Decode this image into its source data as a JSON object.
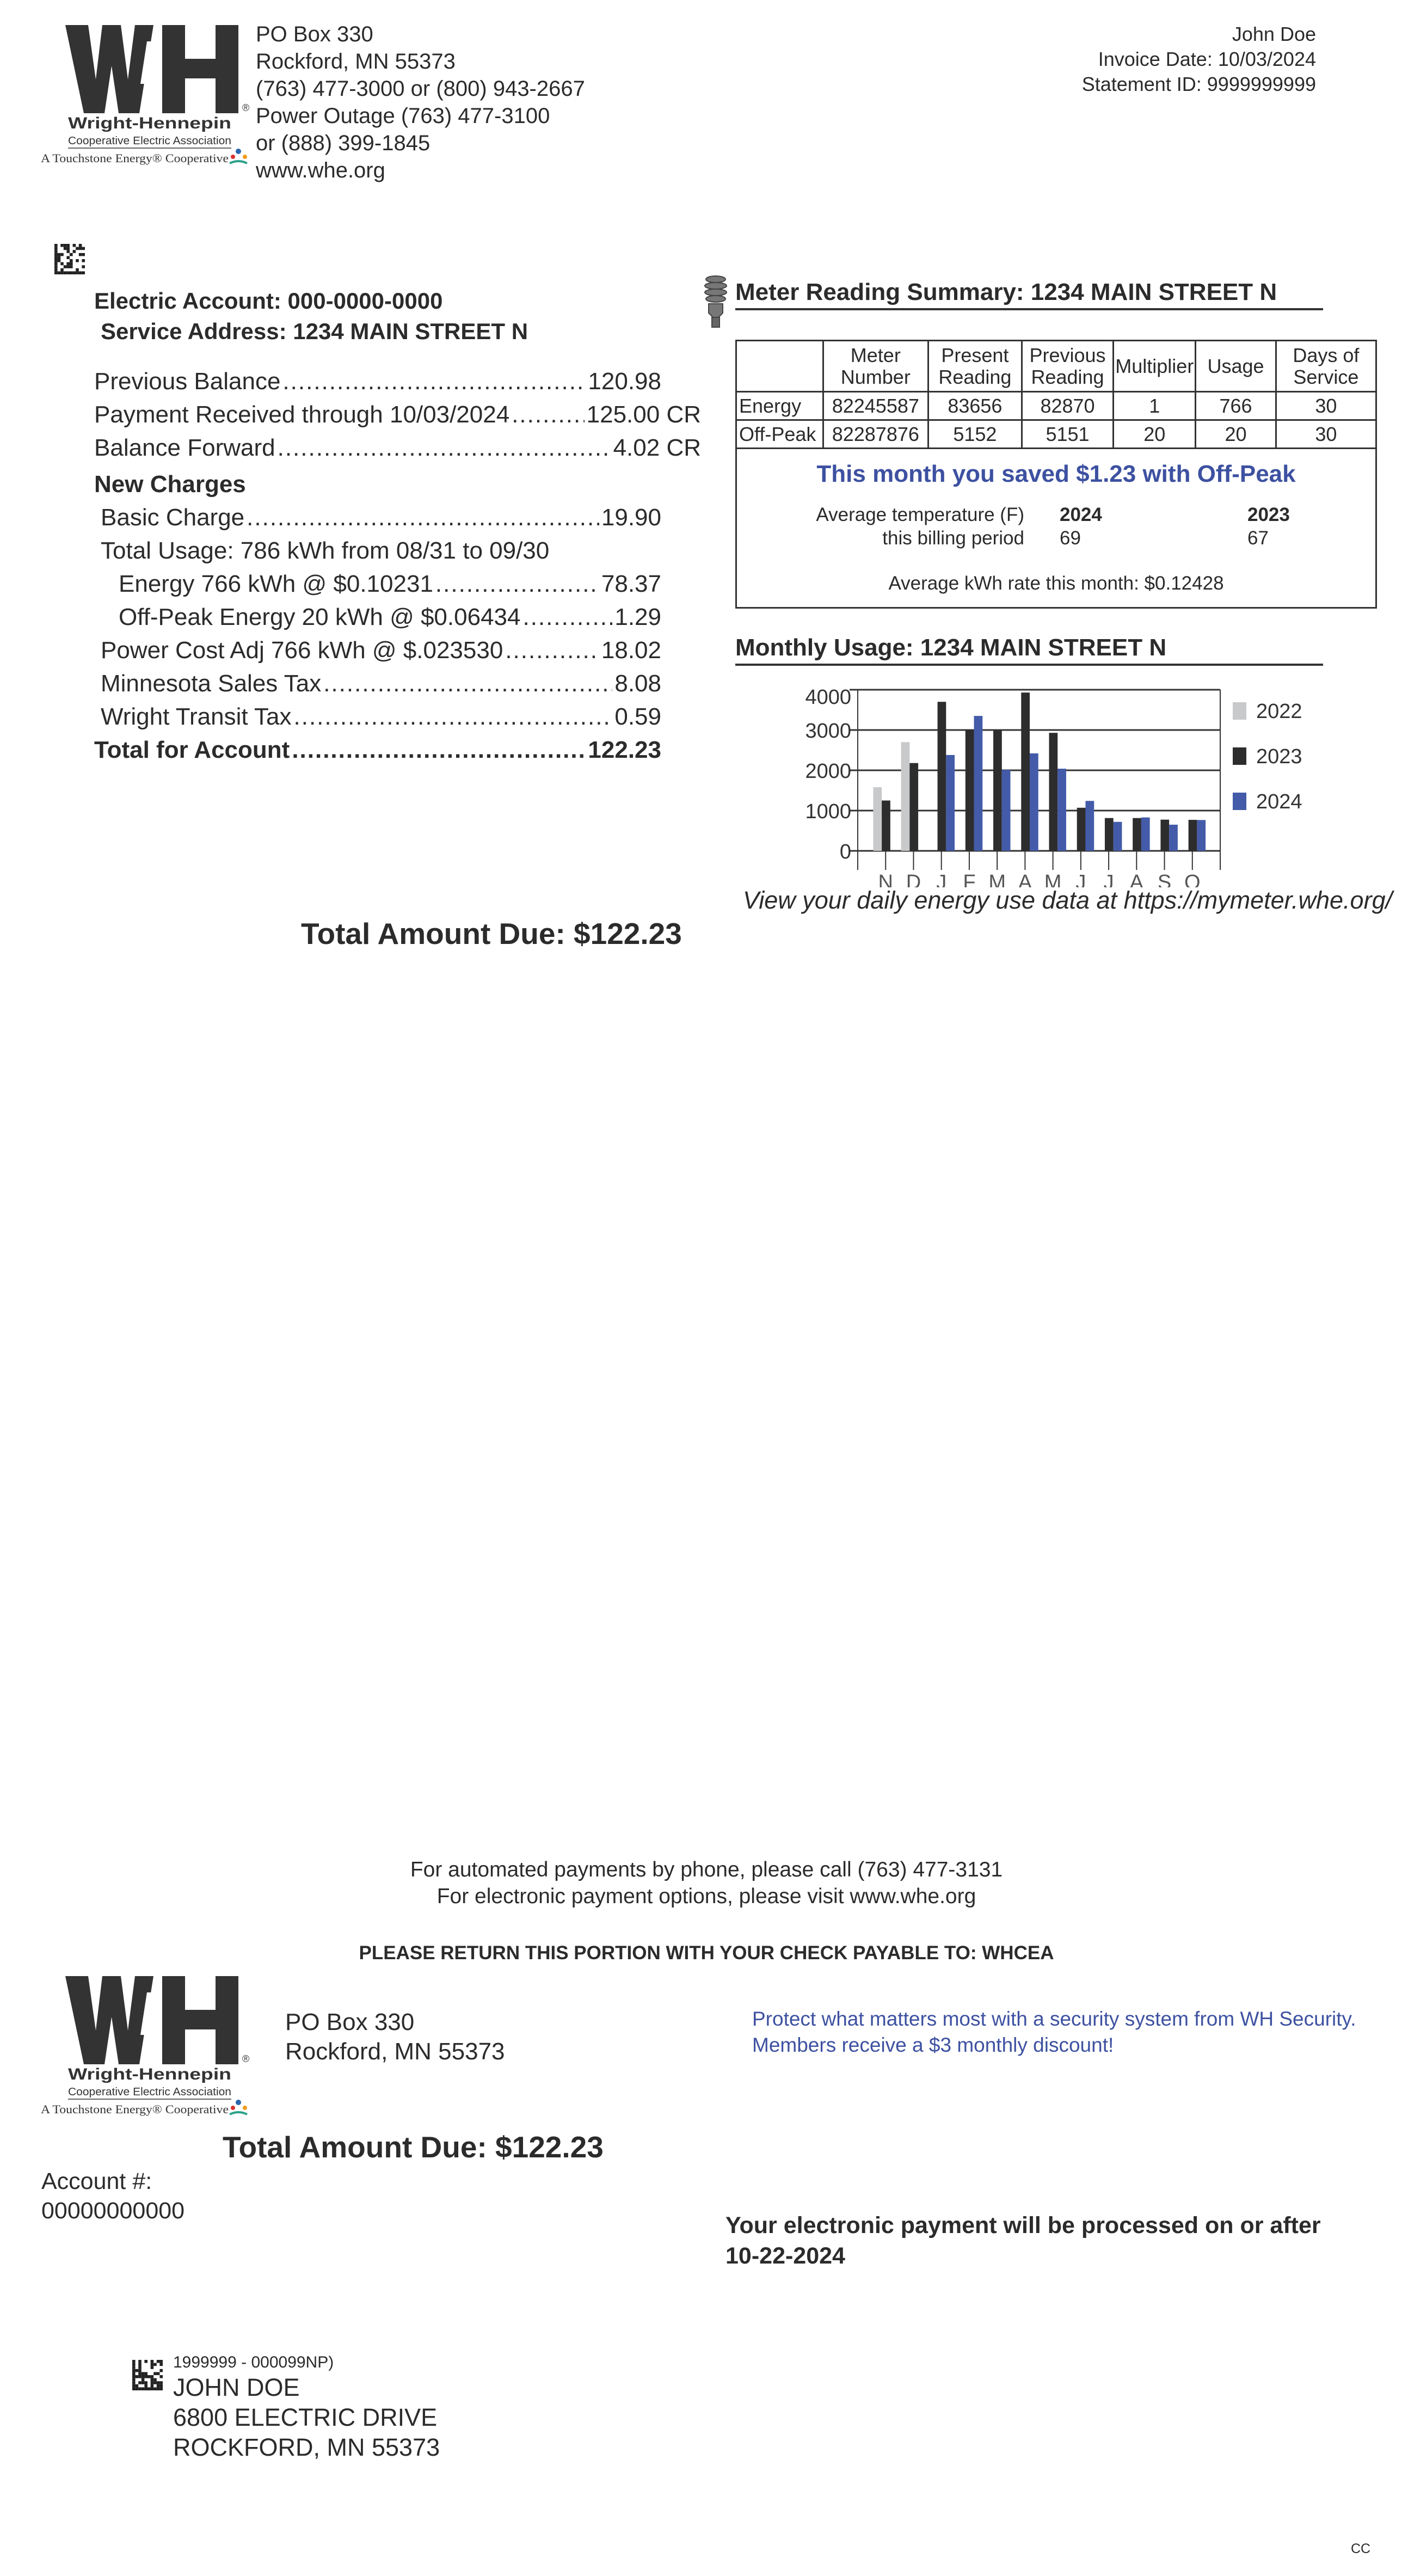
{
  "logo": {
    "letters": "WH",
    "name": "Wright-Hennepin",
    "subtitle": "Cooperative Electric Association",
    "tagline": "A Touchstone Energy® Cooperative"
  },
  "company": {
    "lines": [
      "PO Box 330",
      "Rockford, MN 55373",
      "(763) 477-3000 or (800) 943-2667",
      "Power Outage (763) 477-3100",
      "or (888) 399-1845",
      "www.whe.org"
    ]
  },
  "header": {
    "customer": "John Doe",
    "invoice_date": "Invoice Date: 10/03/2024",
    "statement_id": "Statement ID: 9999999999"
  },
  "account": {
    "electric_account": "Electric Account:  000-0000-0000",
    "service_address": "Service Address: 1234 MAIN STREET N"
  },
  "charges": [
    {
      "label": "Previous Balance",
      "amount": "120.98",
      "style": ""
    },
    {
      "label": "Payment Received through 10/03/2024",
      "amount": "125.00 CR",
      "style": "cr"
    },
    {
      "label": "Balance Forward",
      "amount": "4.02 CR",
      "style": "cr"
    },
    {
      "label": "New Charges",
      "amount": "",
      "style": "heading"
    },
    {
      "label": "Basic Charge",
      "amount": "19.90",
      "style": "i1"
    },
    {
      "label": "Total Usage: 786 kWh from 08/31 to 09/30",
      "amount": "",
      "style": "i1 nolead"
    },
    {
      "label": "Energy 766 kWh @ $0.10231",
      "amount": "78.37",
      "style": "i2"
    },
    {
      "label": "Off-Peak Energy 20 kWh @ $0.06434",
      "amount": "1.29",
      "style": "i2"
    },
    {
      "label": "Power Cost Adj 766 kWh @ $.023530",
      "amount": "18.02",
      "style": "i1"
    },
    {
      "label": "Minnesota Sales Tax",
      "amount": "8.08",
      "style": "i1"
    },
    {
      "label": "Wright Transit Tax",
      "amount": "0.59",
      "style": "i1"
    },
    {
      "label": "Total for Account",
      "amount": "122.23",
      "style": "bold"
    }
  ],
  "total_due": "Total Amount Due:  $122.23",
  "meter": {
    "title": "Meter Reading Summary:  1234 MAIN STREET N",
    "icon": "lightbulb-icon",
    "headers": [
      "",
      "Meter\nNumber",
      "Present\nReading",
      "Previous\nReading",
      "Multiplier",
      "Usage",
      "Days of\nService"
    ],
    "rows": [
      [
        "Energy",
        "82245587",
        "83656",
        "82870",
        "1",
        "766",
        "30"
      ],
      [
        "Off-Peak",
        "82287876",
        "5152",
        "5151",
        "20",
        "20",
        "30"
      ]
    ],
    "savings": "This month you saved $1.23 with Off-Peak",
    "temp_label_1": "Average temperature (F)",
    "temp_label_2": "this billing period",
    "temp_years": [
      "2024",
      "2023"
    ],
    "temp_values": [
      "69",
      "67"
    ],
    "rate": "Average kWh rate this month: $0.12428"
  },
  "chart_data": {
    "type": "bar",
    "title": "Monthly Usage:  1234 MAIN STREET N",
    "categories": [
      "N",
      "D",
      "J",
      "F",
      "M",
      "A",
      "M",
      "J",
      "J",
      "A",
      "S",
      "O"
    ],
    "series": [
      {
        "name": "2022",
        "color": "#c8c9ca",
        "values": [
          1580,
          2700,
          null,
          null,
          null,
          null,
          null,
          null,
          null,
          null,
          null,
          null
        ]
      },
      {
        "name": "2023",
        "color": "#2e2d2e",
        "values": [
          1250,
          2180,
          3700,
          3000,
          3000,
          3930,
          2930,
          1070,
          815,
          815,
          775,
          770
        ]
      },
      {
        "name": "2024",
        "color": "#435ba8",
        "values": [
          null,
          null,
          2380,
          3350,
          2010,
          2420,
          2040,
          1240,
          720,
          830,
          650,
          766
        ]
      }
    ],
    "yticks": [
      0,
      1000,
      2000,
      3000,
      4000
    ],
    "ylim": [
      0,
      4000
    ],
    "grid": true,
    "legend": "right"
  },
  "daily_link": "View your daily energy use data at https://mymeter.whe.org/",
  "stub": {
    "phone_note": "For automated payments by phone, please call (763) 477-3131",
    "web_note": "For electronic payment options, please visit www.whe.org",
    "return_note": "PLEASE RETURN THIS PORTION WITH YOUR CHECK PAYABLE TO: WHCEA",
    "address": [
      "PO Box 330",
      "Rockford, MN 55373"
    ],
    "promo": [
      "Protect what matters most with a security system from WH Security.",
      "Members receive a $3 monthly discount!"
    ],
    "total_due": "Total Amount Due:  $122.23",
    "account_label": "Account #:",
    "account_number": "00000000000",
    "epay": [
      "Your electronic payment will be processed on or after",
      "10-22-2024"
    ],
    "mail_code": "1999999 - 000099NP)",
    "mail_address": [
      "JOHN DOE",
      "6800 ELECTRIC DRIVE",
      "ROCKFORD, MN 55373"
    ],
    "corner": "CC"
  }
}
